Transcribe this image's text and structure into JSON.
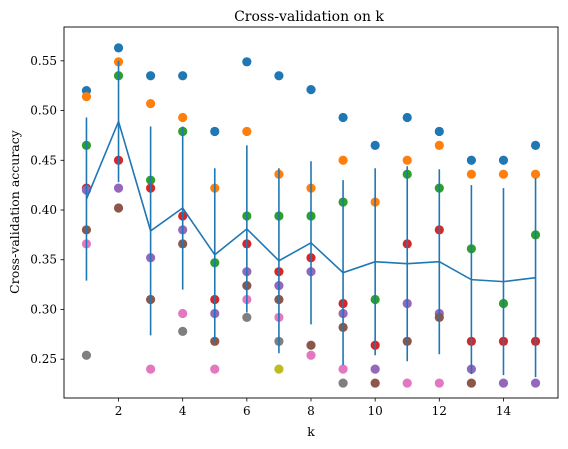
{
  "chart_data": {
    "type": "scatter",
    "title": "Cross-validation on k",
    "xlabel": "k",
    "ylabel": "Cross-validation accuracy",
    "xlim": [
      0.3,
      15.7
    ],
    "ylim": [
      0.211,
      0.584
    ],
    "xticks": [
      2,
      4,
      6,
      8,
      10,
      12,
      14
    ],
    "yticks": [
      0.25,
      0.3,
      0.35,
      0.4,
      0.45,
      0.5,
      0.55
    ],
    "xtick_labels": [
      "2",
      "4",
      "6",
      "8",
      "10",
      "12",
      "14"
    ],
    "ytick_labels": [
      "0.25",
      "0.30",
      "0.35",
      "0.40",
      "0.45",
      "0.50",
      "0.55"
    ],
    "grid": false,
    "legend": "none",
    "color_cycle": [
      "#1f77b4",
      "#ff7f0e",
      "#2ca02c",
      "#d62728",
      "#9467bd",
      "#8c564b",
      "#e377c2",
      "#7f7f7f",
      "#bcbd22",
      "#17becf"
    ],
    "points": [
      {
        "k": 1,
        "values": [
          0.52,
          0.514,
          0.465,
          0.422,
          0.42,
          0.38,
          0.366,
          0.254
        ]
      },
      {
        "k": 2,
        "values": [
          0.563,
          0.549,
          0.535,
          0.45,
          0.422,
          0.402
        ]
      },
      {
        "k": 3,
        "values": [
          0.535,
          0.507,
          0.43,
          0.422,
          0.352,
          0.31,
          0.24
        ]
      },
      {
        "k": 4,
        "values": [
          0.535,
          0.493,
          0.479,
          0.394,
          0.38,
          0.366,
          0.296,
          0.278
        ]
      },
      {
        "k": 5,
        "values": [
          0.479,
          0.422,
          0.347,
          0.31,
          0.296,
          0.268,
          0.24
        ]
      },
      {
        "k": 6,
        "values": [
          0.549,
          0.479,
          0.394,
          0.366,
          0.338,
          0.324,
          0.31,
          0.292
        ]
      },
      {
        "k": 7,
        "values": [
          0.535,
          0.436,
          0.394,
          0.338,
          0.324,
          0.31,
          0.292,
          0.268,
          0.24
        ]
      },
      {
        "k": 8,
        "values": [
          0.521,
          0.422,
          0.394,
          0.352,
          0.338,
          0.264,
          0.254
        ]
      },
      {
        "k": 9,
        "values": [
          0.493,
          0.45,
          0.408,
          0.306,
          0.296,
          0.282,
          0.24,
          0.226
        ]
      },
      {
        "k": 10,
        "values": [
          0.465,
          0.408,
          0.31,
          0.264,
          0.24,
          0.226
        ]
      },
      {
        "k": 11,
        "values": [
          0.493,
          0.45,
          0.436,
          0.366,
          0.306,
          0.268,
          0.226
        ]
      },
      {
        "k": 12,
        "values": [
          0.479,
          0.465,
          0.422,
          0.38,
          0.296,
          0.292,
          0.226
        ]
      },
      {
        "k": 13,
        "values": [
          0.45,
          0.436,
          0.361,
          0.268,
          0.24,
          0.226
        ]
      },
      {
        "k": 14,
        "values": [
          0.45,
          0.436,
          0.306,
          0.268,
          0.226
        ]
      },
      {
        "k": 15,
        "values": [
          0.465,
          0.436,
          0.375,
          0.268,
          0.226
        ]
      }
    ],
    "series": [
      {
        "kind": "mean_with_error_bars",
        "color": "#1f77b4",
        "x": [
          1,
          2,
          3,
          4,
          5,
          6,
          7,
          8,
          9,
          10,
          11,
          12,
          13,
          14,
          15
        ],
        "mean": [
          0.411,
          0.489,
          0.379,
          0.402,
          0.355,
          0.381,
          0.349,
          0.367,
          0.337,
          0.348,
          0.346,
          0.348,
          0.33,
          0.328,
          0.332
        ],
        "std": [
          0.082,
          0.061,
          0.105,
          0.082,
          0.087,
          0.084,
          0.093,
          0.082,
          0.093,
          0.094,
          0.098,
          0.093,
          0.095,
          0.094,
          0.1
        ]
      }
    ]
  }
}
